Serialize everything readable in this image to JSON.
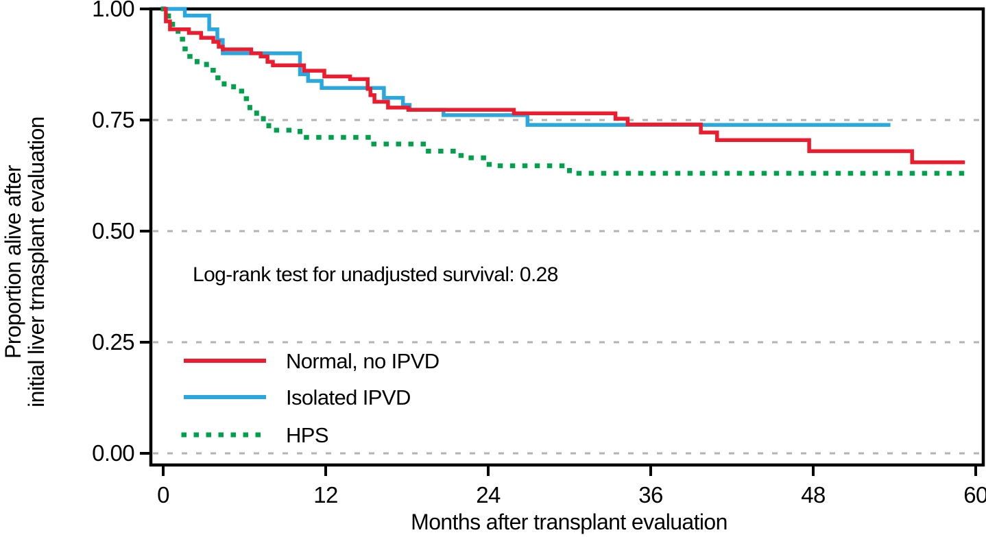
{
  "figure": {
    "background": "#ffffff",
    "axis_color": "#000000",
    "grid_color": "#b3b3b3"
  },
  "chart_data": {
    "type": "line",
    "variant": "kaplan-meier-step",
    "title": "",
    "xlabel": "Months after transplant evaluation",
    "ylabel_line1": "Proportion alive after",
    "ylabel_line2": "initial liver trnasplant evaluation",
    "annotation": "Log-rank test for unadjusted survival: 0.28",
    "xlim": [
      0,
      60
    ],
    "ylim": [
      0.0,
      1.0
    ],
    "xticks": [
      0,
      12,
      24,
      36,
      48,
      60
    ],
    "xtick_labels": [
      "0",
      "12",
      "24",
      "36",
      "48",
      "60"
    ],
    "ytick_values": [
      0.0,
      0.25,
      0.5,
      0.75,
      1.0
    ],
    "ytick_labels": [
      "0.00",
      "0.25",
      "0.50",
      "0.75",
      "1.00"
    ],
    "grid_values": [
      0.0,
      0.25,
      0.5,
      0.75
    ],
    "grid_style": "dashed-horizontal",
    "legend_position": "inside-lower-left",
    "series": [
      {
        "name": "Normal, no IPVD",
        "color": "#ec1b2d",
        "line_style": "solid",
        "end_x": 59.2,
        "steps": [
          [
            0,
            1.0
          ],
          [
            0.2,
            0.972
          ],
          [
            0.5,
            0.954
          ],
          [
            1.9,
            0.946
          ],
          [
            2.8,
            0.935
          ],
          [
            3.7,
            0.926
          ],
          [
            4.1,
            0.915
          ],
          [
            4.4,
            0.909
          ],
          [
            6.5,
            0.9
          ],
          [
            7.2,
            0.893
          ],
          [
            7.7,
            0.881
          ],
          [
            8.1,
            0.873
          ],
          [
            10.4,
            0.861
          ],
          [
            11.9,
            0.848
          ],
          [
            13.8,
            0.842
          ],
          [
            15.1,
            0.82
          ],
          [
            15.3,
            0.806
          ],
          [
            15.6,
            0.791
          ],
          [
            16.6,
            0.778
          ],
          [
            18.1,
            0.773
          ],
          [
            25.9,
            0.765
          ],
          [
            33.4,
            0.753
          ],
          [
            34.3,
            0.74
          ],
          [
            39.7,
            0.722
          ],
          [
            40.9,
            0.705
          ],
          [
            47.7,
            0.68
          ],
          [
            55.3,
            0.655
          ]
        ]
      },
      {
        "name": "Isolated IPVD",
        "color": "#29a8e0",
        "line_style": "solid",
        "end_x": 53.7,
        "steps": [
          [
            0,
            1.0
          ],
          [
            1.6,
            0.985
          ],
          [
            3.4,
            0.954
          ],
          [
            4.0,
            0.93
          ],
          [
            4.4,
            0.9
          ],
          [
            10.1,
            0.853
          ],
          [
            10.7,
            0.838
          ],
          [
            11.7,
            0.822
          ],
          [
            16.3,
            0.8
          ],
          [
            17.7,
            0.784
          ],
          [
            18.2,
            0.773
          ],
          [
            20.7,
            0.761
          ],
          [
            26.9,
            0.739
          ]
        ]
      },
      {
        "name": "HPS",
        "color": "#00a14b",
        "line_style": "dotted",
        "end_x": 59.4,
        "steps": [
          [
            0,
            1.0
          ],
          [
            0.4,
            0.973
          ],
          [
            0.7,
            0.954
          ],
          [
            1.1,
            0.932
          ],
          [
            1.5,
            0.91
          ],
          [
            1.9,
            0.893
          ],
          [
            2.5,
            0.88
          ],
          [
            3.2,
            0.862
          ],
          [
            3.9,
            0.845
          ],
          [
            4.5,
            0.83
          ],
          [
            5.2,
            0.815
          ],
          [
            5.9,
            0.798
          ],
          [
            6.4,
            0.776
          ],
          [
            6.9,
            0.761
          ],
          [
            7.4,
            0.745
          ],
          [
            7.8,
            0.727
          ],
          [
            10.1,
            0.711
          ],
          [
            15.2,
            0.696
          ],
          [
            19.3,
            0.68
          ],
          [
            21.6,
            0.67
          ],
          [
            22.6,
            0.665
          ],
          [
            23.9,
            0.65
          ],
          [
            24.3,
            0.647
          ],
          [
            30.0,
            0.63
          ]
        ]
      }
    ]
  }
}
